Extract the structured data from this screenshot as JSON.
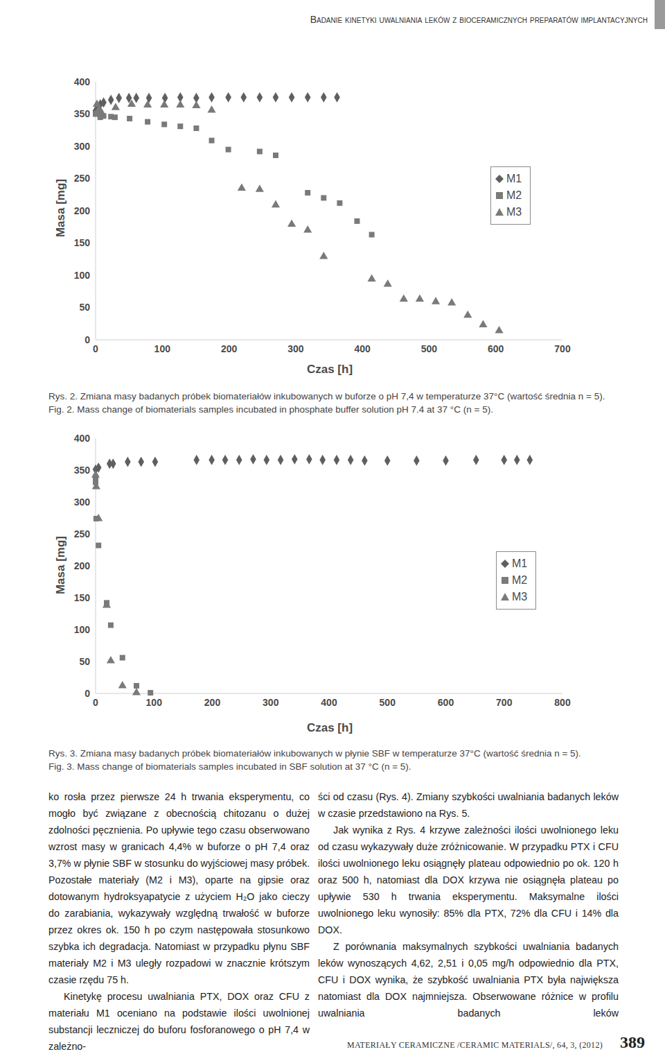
{
  "header": "Badanie kinetyki uwalniania leków z bioceramicznych preparatów implantacyjnych",
  "chart_data": [
    {
      "type": "scatter",
      "xlabel": "Czas [h]",
      "ylabel": "Masa [mg]",
      "xlim": [
        0,
        700
      ],
      "xticks": [
        0,
        100,
        200,
        300,
        400,
        500,
        600,
        700
      ],
      "ylim": [
        0,
        400
      ],
      "yticks": [
        0,
        50,
        100,
        150,
        200,
        250,
        300,
        350,
        400
      ],
      "legend": "right",
      "series": [
        {
          "name": "M1",
          "color": "#5f5f5f",
          "marker": "diamond",
          "x": [
            0,
            3,
            7,
            12,
            23,
            35,
            50,
            61,
            80,
            104,
            127,
            151,
            174,
            199,
            222,
            246,
            270,
            294,
            318,
            342,
            362
          ],
          "y": [
            355,
            360,
            365,
            368,
            372,
            375,
            375,
            375,
            375,
            375,
            376,
            375,
            376,
            376,
            376,
            376,
            376,
            376,
            376,
            376,
            376
          ]
        },
        {
          "name": "M2",
          "color": "#7a7a7a",
          "marker": "square",
          "x": [
            0,
            2,
            7,
            12,
            23,
            29,
            51,
            78,
            103,
            127,
            151,
            174,
            199,
            246,
            270,
            318,
            342,
            366,
            392,
            414
          ],
          "y": [
            350,
            351,
            345,
            347,
            346,
            345,
            343,
            338,
            334,
            331,
            328,
            309,
            295,
            292,
            286,
            228,
            220,
            212,
            184,
            163
          ]
        },
        {
          "name": "M3",
          "color": "#7a7a7a",
          "marker": "triangle",
          "x": [
            2,
            5,
            9,
            30,
            54,
            78,
            103,
            127,
            151,
            174,
            219,
            246,
            270,
            294,
            318,
            342,
            414,
            438,
            462,
            486,
            510,
            534,
            558,
            581,
            605
          ],
          "y": [
            365,
            357,
            352,
            360,
            365,
            364,
            364,
            364,
            363,
            356,
            235,
            233,
            209,
            179,
            170,
            129,
            94,
            86,
            63,
            63,
            59,
            57,
            38,
            23,
            14
          ]
        }
      ]
    },
    {
      "type": "scatter",
      "xlabel": "Czas [h]",
      "ylabel": "Masa [mg]",
      "xlim": [
        0,
        800
      ],
      "xticks": [
        0,
        100,
        200,
        300,
        400,
        500,
        600,
        700,
        800
      ],
      "ylim": [
        0,
        400
      ],
      "yticks": [
        0,
        50,
        100,
        150,
        200,
        250,
        300,
        350,
        400
      ],
      "legend": "right",
      "series": [
        {
          "name": "M1",
          "color": "#5f5f5f",
          "marker": "diamond",
          "x": [
            0,
            5,
            24,
            30,
            55,
            78,
            102,
            173,
            199,
            222,
            246,
            270,
            293,
            317,
            341,
            366,
            389,
            413,
            437,
            461,
            500,
            550,
            600,
            652,
            700,
            722,
            744
          ],
          "y": [
            351,
            354,
            360,
            360,
            363,
            363,
            363,
            366,
            366,
            366,
            366,
            367,
            366,
            366,
            367,
            367,
            366,
            366,
            366,
            365,
            365,
            365,
            365,
            366,
            366,
            366,
            366
          ]
        },
        {
          "name": "M2",
          "color": "#7a7a7a",
          "marker": "square",
          "x": [
            0,
            0,
            1,
            5,
            19,
            26,
            46,
            70,
            94
          ],
          "y": [
            339,
            331,
            274,
            232,
            142,
            107,
            56,
            12,
            1
          ]
        },
        {
          "name": "M3",
          "color": "#7a7a7a",
          "marker": "triangle",
          "x": [
            0,
            1,
            5,
            19,
            26,
            46,
            70
          ],
          "y": [
            342,
            324,
            274,
            138,
            51,
            12,
            1
          ]
        }
      ]
    }
  ],
  "captions": [
    {
      "pl": "Rys. 2. Zmiana masy badanych próbek biomateriałów inkubowanych w buforze o pH 7,4 w temperaturze 37°C (wartość średnia n = 5).",
      "en": "Fig. 2. Mass change of biomaterials samples incubated in phosphate buffer solution pH 7.4 at 37 °C (n = 5)."
    },
    {
      "pl": "Rys. 3. Zmiana masy badanych próbek biomateriałów inkubowanych w płynie SBF w temperaturze 37°C (wartość średnia n = 5).",
      "en": "Fig. 3. Mass change of biomaterials samples incubated in SBF solution at 37 °C (n = 5)."
    }
  ],
  "body": {
    "left": [
      "ko rosła przez pierwsze 24 h trwania eksperymentu, co mogło być związane z obecnością chitozanu o dużej zdolności pęcznienia. Po upływie tego czasu obserwowano wzrost masy w granicach 4,4% w buforze o pH 7,4 oraz 3,7% w płynie SBF w stosunku do wyjściowej masy próbek. Pozostałe materiały (M2 i M3), oparte na gipsie oraz dotowanym hydroksyapatycie z użyciem H₂O jako cieczy do zarabiania, wykazywały względną trwałość w buforze przez okres ok. 150 h po czym następowała stosunkowo szybka ich degradacja. Natomiast w przypadku płynu SBF materiały M2 i M3 uległy rozpadowi w znacznie krótszym czasie rzędu 75 h.",
      "Kinetykę procesu uwalniania PTX, DOX oraz CFU z materiału M1 oceniano na podstawie ilości uwolnionej substancji leczniczej do buforu fosforanowego o pH 7,4 w zależno-"
    ],
    "right": [
      "ści od czasu (Rys. 4). Zmiany szybkości uwalniania badanych leków w czasie przedstawiono na Rys. 5.",
      "Jak wynika z Rys. 4 krzywe zależności ilości uwolnionego leku od czasu wykazywały duże zróżnicowanie. W przypadku PTX i CFU ilości uwolnionego leku osiągnęły plateau odpowiednio po ok. 120 h oraz 500 h, natomiast dla DOX krzywa nie osiągnęła plateau po upływie 530 h trwania eksperymentu. Maksymalne ilości uwolnionego leku wynosiły: 85% dla PTX, 72% dla CFU i 14% dla DOX.",
      "Z porównania maksymalnych szybkości uwalniania badanych leków wynoszących 4,62, 2,51 i 0,05 mg/h odpowiednio dla PTX, CFU i DOX wynika, że szybkość uwalniania PTX była największa natomiast dla DOX najmniejsza. Obserwowane różnice w profilu uwalniania badanych leków"
    ]
  },
  "footer": {
    "journal": "MATERIAŁY CERAMICZNE /CERAMIC MATERIALS/, 64, 3, (2012)",
    "page": "389"
  }
}
